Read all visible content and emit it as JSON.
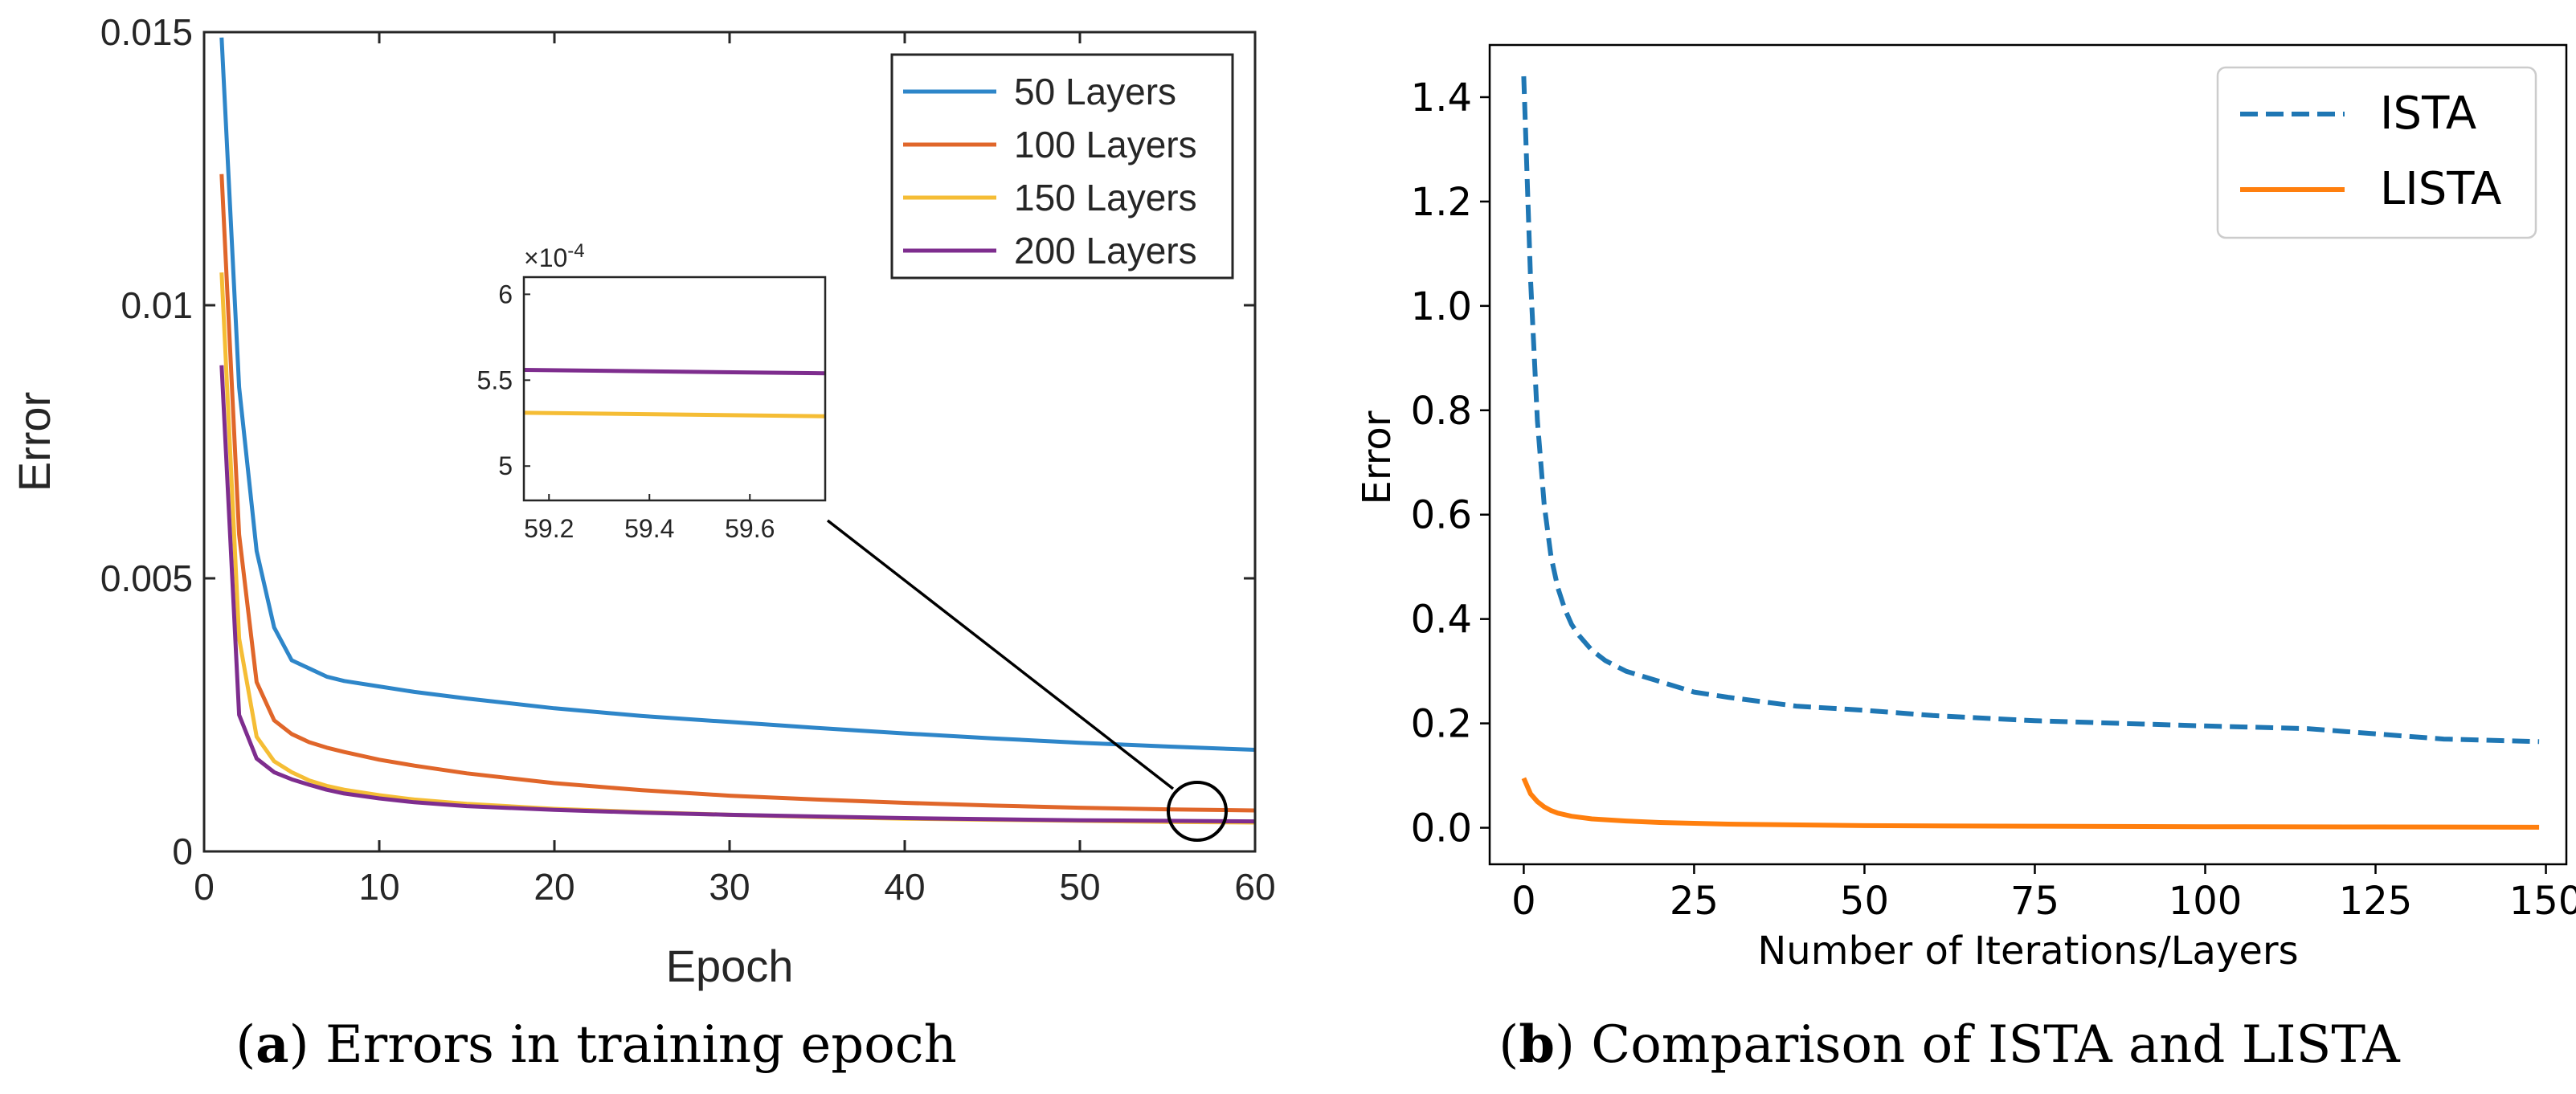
{
  "charts": {
    "a": {
      "caption_letter": "a",
      "caption_text": " Errors in training epoch",
      "xlabel": "Epoch",
      "ylabel": "Error",
      "xlim": [
        0,
        60
      ],
      "ylim": [
        0,
        0.015
      ],
      "xticks": [
        "0",
        "10",
        "20",
        "30",
        "40",
        "50",
        "60"
      ],
      "yticks": [
        "0",
        "0.005",
        "0.01",
        "0.015"
      ],
      "legend_position": "top-right",
      "inset_xticks": [
        "59.2",
        "59.4",
        "59.6"
      ],
      "inset_yticks": [
        "5",
        "5.5",
        "6"
      ],
      "inset_exponent_prefix": "×10",
      "inset_exponent_power": "-4"
    },
    "b": {
      "caption_letter": "b",
      "caption_text": " Comparison of ISTA and LISTA",
      "xlabel": "Number of Iterations/Layers",
      "ylabel": "Error",
      "xticks": [
        "0",
        "25",
        "50",
        "75",
        "100",
        "125",
        "150"
      ],
      "yticks": [
        "0.0",
        "0.2",
        "0.4",
        "0.6",
        "0.8",
        "1.0",
        "1.2",
        "1.4"
      ],
      "legend_position": "top-right"
    }
  },
  "chart_data": [
    {
      "type": "line",
      "title": "Errors in training epoch",
      "xlabel": "Epoch",
      "ylabel": "Error",
      "xlim": [
        0,
        60
      ],
      "ylim": [
        0,
        0.015
      ],
      "grid": false,
      "legend": "top-right",
      "series": [
        {
          "name": "50 Layers",
          "color": "#2e86c9",
          "x": [
            1,
            2,
            3,
            4,
            5,
            6,
            7,
            8,
            10,
            12,
            15,
            20,
            25,
            30,
            35,
            40,
            45,
            50,
            55,
            60
          ],
          "y": [
            0.0149,
            0.0085,
            0.0055,
            0.0041,
            0.0035,
            0.00335,
            0.0032,
            0.00312,
            0.00302,
            0.00292,
            0.0028,
            0.00262,
            0.00248,
            0.00237,
            0.00226,
            0.00216,
            0.00207,
            0.00199,
            0.00192,
            0.00186
          ]
        },
        {
          "name": "100 Layers",
          "color": "#e0662a",
          "x": [
            1,
            2,
            3,
            4,
            5,
            6,
            7,
            8,
            10,
            12,
            15,
            20,
            25,
            30,
            35,
            40,
            45,
            50,
            55,
            60
          ],
          "y": [
            0.0124,
            0.0058,
            0.0031,
            0.0024,
            0.00215,
            0.002,
            0.0019,
            0.00182,
            0.00168,
            0.00157,
            0.00143,
            0.00125,
            0.00112,
            0.00102,
            0.00095,
            0.00089,
            0.00084,
            0.0008,
            0.00077,
            0.00075
          ]
        },
        {
          "name": "150 Layers",
          "color": "#f5bd35",
          "x": [
            1,
            2,
            3,
            4,
            5,
            6,
            7,
            8,
            10,
            12,
            15,
            20,
            25,
            30,
            35,
            40,
            45,
            50,
            55,
            60
          ],
          "y": [
            0.0106,
            0.0039,
            0.0021,
            0.00165,
            0.00145,
            0.0013,
            0.0012,
            0.00113,
            0.00103,
            0.00095,
            0.00087,
            0.00078,
            0.00072,
            0.00067,
            0.00063,
            0.0006,
            0.00058,
            0.00056,
            0.00054,
            0.00053
          ]
        },
        {
          "name": "200 Layers",
          "color": "#7e2d8e",
          "x": [
            1,
            2,
            3,
            4,
            5,
            6,
            7,
            8,
            10,
            12,
            15,
            20,
            25,
            30,
            35,
            40,
            45,
            50,
            55,
            60
          ],
          "y": [
            0.0089,
            0.0025,
            0.0017,
            0.00145,
            0.00132,
            0.00122,
            0.00113,
            0.00106,
            0.00097,
            0.0009,
            0.00083,
            0.00076,
            0.00071,
            0.00067,
            0.00064,
            0.00061,
            0.00059,
            0.00057,
            0.00056,
            0.00055
          ]
        }
      ],
      "inset": {
        "xlim": [
          59.15,
          59.75
        ],
        "ylim": [
          4.8,
          6.1
        ],
        "y_scale_label": "×10^-4",
        "series": [
          {
            "name": "200 Layers",
            "color": "#7e2d8e",
            "x": [
              59.15,
              59.75
            ],
            "y": [
              5.56,
              5.54
            ]
          },
          {
            "name": "150 Layers",
            "color": "#f5bd35",
            "x": [
              59.15,
              59.75
            ],
            "y": [
              5.31,
              5.29
            ]
          }
        ]
      }
    },
    {
      "type": "line",
      "title": "Comparison of ISTA and LISTA",
      "xlabel": "Number of Iterations/Layers",
      "ylabel": "Error",
      "xlim": [
        -5,
        153
      ],
      "ylim": [
        -0.07,
        1.5
      ],
      "grid": false,
      "legend": "top-right",
      "series": [
        {
          "name": "ISTA",
          "color": "#1f77b4",
          "dashed": true,
          "x": [
            0,
            1,
            2,
            3,
            4,
            5,
            6,
            7,
            8,
            10,
            12,
            15,
            20,
            25,
            30,
            40,
            50,
            60,
            75,
            100,
            115,
            125,
            135,
            149
          ],
          "y": [
            1.44,
            1.05,
            0.78,
            0.62,
            0.52,
            0.46,
            0.42,
            0.39,
            0.37,
            0.34,
            0.32,
            0.3,
            0.28,
            0.26,
            0.25,
            0.233,
            0.225,
            0.215,
            0.205,
            0.195,
            0.19,
            0.18,
            0.17,
            0.165
          ]
        },
        {
          "name": "LISTA",
          "color": "#ff7f0e",
          "dashed": false,
          "x": [
            0,
            1,
            2,
            3,
            4,
            5,
            7,
            10,
            15,
            20,
            30,
            50,
            75,
            100,
            125,
            149
          ],
          "y": [
            0.095,
            0.065,
            0.05,
            0.04,
            0.033,
            0.028,
            0.022,
            0.017,
            0.013,
            0.01,
            0.007,
            0.004,
            0.003,
            0.002,
            0.0015,
            0.001
          ]
        }
      ]
    }
  ]
}
